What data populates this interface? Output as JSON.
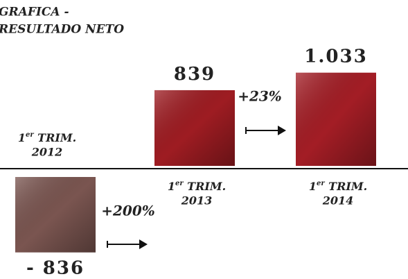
{
  "chart_data": {
    "type": "bar",
    "title_lines": [
      "GRAFICA -",
      "RESULTADO NETO"
    ],
    "category_prefix": {
      "number": "1",
      "ordinal": "er",
      "word": "TRIM."
    },
    "categories": [
      "2012",
      "2013",
      "2014"
    ],
    "values": [
      -836,
      839,
      1033
    ],
    "value_labels": [
      "- 836",
      "839",
      "1.033"
    ],
    "colors": [
      "#7a5550",
      "#9e1c22",
      "#a31d25"
    ],
    "annotations": [
      "+200%",
      "+23%"
    ]
  }
}
